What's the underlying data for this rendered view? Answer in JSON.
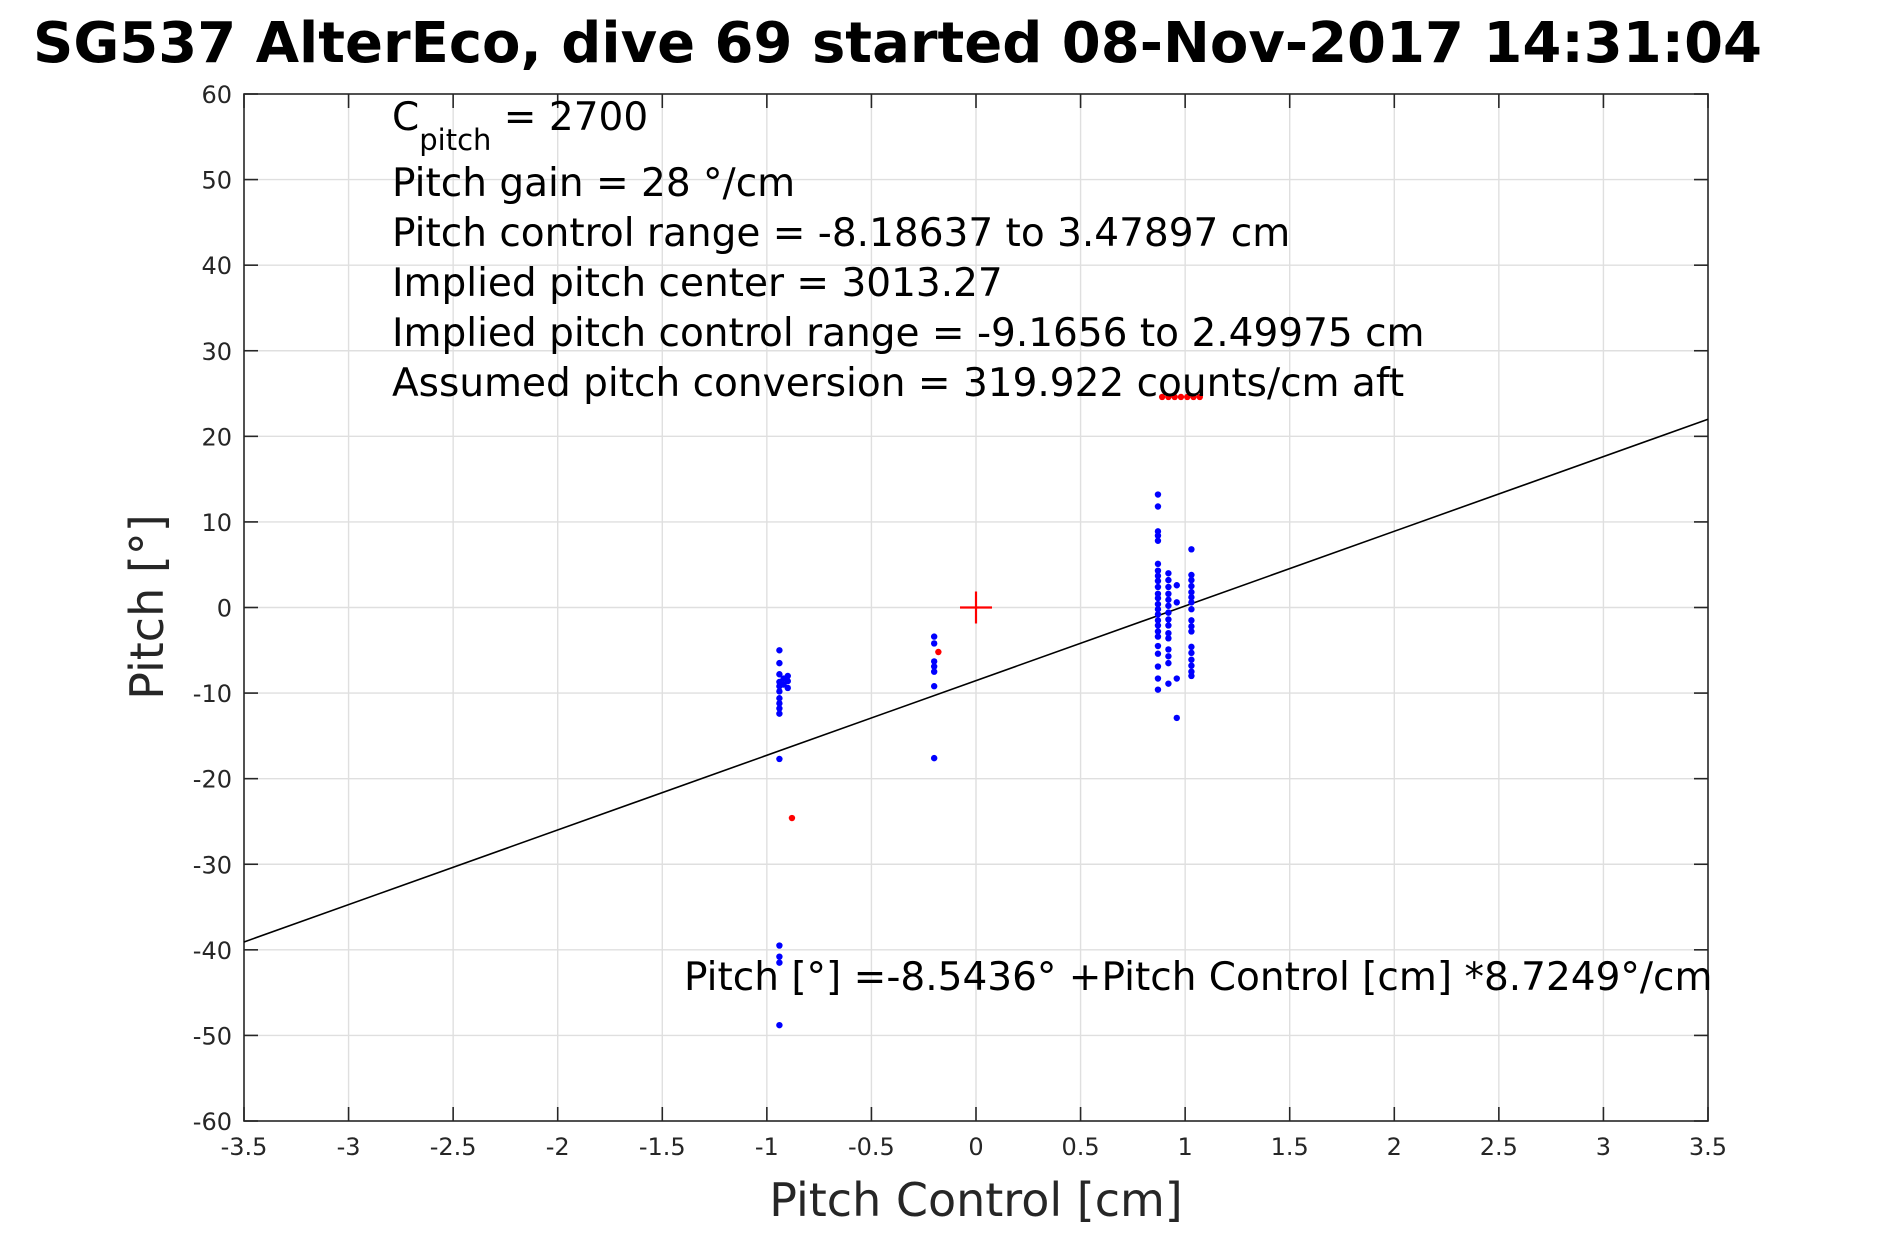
{
  "chart_data": {
    "type": "scatter",
    "title": "SG537 AlterEco, dive 69 started 08-Nov-2017 14:31:04",
    "xlabel": "Pitch Control [cm]",
    "ylabel": "Pitch [°]",
    "xlim": [
      -3.5,
      3.5
    ],
    "ylim": [
      -60,
      60
    ],
    "x_ticks": [
      -3.5,
      -3,
      -2.5,
      -2,
      -1.5,
      -1,
      -0.5,
      0,
      0.5,
      1,
      1.5,
      2,
      2.5,
      3,
      3.5
    ],
    "x_tick_labels": [
      "-3.5",
      "-3",
      "-2.5",
      "-2",
      "-1.5",
      "-1",
      "-0.5",
      "0",
      "0.5",
      "1",
      "1.5",
      "2",
      "2.5",
      "3",
      "3.5"
    ],
    "y_ticks": [
      -60,
      -50,
      -40,
      -30,
      -20,
      -10,
      0,
      10,
      20,
      30,
      40,
      50,
      60
    ],
    "y_tick_labels": [
      "-60",
      "-50",
      "-40",
      "-30",
      "-20",
      "-10",
      "0",
      "10",
      "20",
      "30",
      "40",
      "50",
      "60"
    ],
    "grid": true,
    "annotations": {
      "c_pitch_prefix": "C",
      "c_pitch_sub": "pitch",
      "c_pitch_value": " = 2700",
      "lines": [
        "Pitch gain = 28 °/cm",
        "Pitch control range = -8.18637 to 3.47897 cm",
        "Implied pitch center = 3013.27",
        "Implied pitch control range = -9.1656 to 2.49975 cm",
        "Assumed pitch conversion = 319.922 counts/cm aft"
      ],
      "fit_equation": "Pitch [°] =-8.5436° +Pitch Control [cm] *8.7249°/cm"
    },
    "fit_line": {
      "intercept": -8.5436,
      "slope": 8.7249,
      "color": "#000000"
    },
    "center_marker": {
      "x": 0,
      "y": 0,
      "color": "#ff0000"
    },
    "series": [
      {
        "color": "#0000ff",
        "points": [
          [
            -0.94,
            -5
          ],
          [
            -0.94,
            -6.5
          ],
          [
            -0.94,
            -7.8
          ],
          [
            -0.94,
            -8.7
          ],
          [
            -0.94,
            -9.2
          ],
          [
            -0.94,
            -9.8
          ],
          [
            -0.94,
            -10.6
          ],
          [
            -0.94,
            -11.2
          ],
          [
            -0.94,
            -11.8
          ],
          [
            -0.94,
            -12.4
          ],
          [
            -0.92,
            -8.3
          ],
          [
            -0.92,
            -9
          ],
          [
            -0.9,
            -8
          ],
          [
            -0.9,
            -8.6
          ],
          [
            -0.9,
            -9.4
          ],
          [
            -0.94,
            -17.7
          ],
          [
            -0.94,
            -39.5
          ],
          [
            -0.94,
            -40.8
          ],
          [
            -0.94,
            -41.5
          ],
          [
            -0.94,
            -48.8
          ],
          [
            -0.2,
            -3.4
          ],
          [
            -0.2,
            -4.2
          ],
          [
            -0.2,
            -6.3
          ],
          [
            -0.2,
            -6.9
          ],
          [
            -0.2,
            -7.5
          ],
          [
            -0.2,
            -9.2
          ],
          [
            -0.2,
            -17.6
          ],
          [
            0.87,
            13.2
          ],
          [
            0.87,
            11.8
          ],
          [
            0.87,
            8.9
          ],
          [
            0.87,
            8.4
          ],
          [
            0.87,
            7.8
          ],
          [
            0.87,
            5.1
          ],
          [
            0.87,
            4.3
          ],
          [
            0.87,
            3.7
          ],
          [
            0.87,
            3.1
          ],
          [
            0.87,
            2.4
          ],
          [
            0.87,
            1.6
          ],
          [
            0.87,
            1.1
          ],
          [
            0.87,
            0.4
          ],
          [
            0.87,
            -0.2
          ],
          [
            0.87,
            -0.8
          ],
          [
            0.87,
            -1.5
          ],
          [
            0.87,
            -2.1
          ],
          [
            0.87,
            -2.8
          ],
          [
            0.87,
            -3.4
          ],
          [
            0.87,
            -4.5
          ],
          [
            0.87,
            -5.4
          ],
          [
            0.87,
            -6.9
          ],
          [
            0.87,
            -8.3
          ],
          [
            0.87,
            -9.6
          ],
          [
            0.92,
            4
          ],
          [
            0.92,
            3.2
          ],
          [
            0.92,
            2.4
          ],
          [
            0.92,
            1.6
          ],
          [
            0.92,
            0.9
          ],
          [
            0.92,
            0.2
          ],
          [
            0.92,
            -0.6
          ],
          [
            0.92,
            -1.4
          ],
          [
            0.92,
            -2.1
          ],
          [
            0.92,
            -3
          ],
          [
            0.92,
            -3.6
          ],
          [
            0.92,
            -4.9
          ],
          [
            0.92,
            -5.7
          ],
          [
            0.92,
            -6.5
          ],
          [
            0.92,
            -8.9
          ],
          [
            0.96,
            2.6
          ],
          [
            0.96,
            0.6
          ],
          [
            0.96,
            -8.3
          ],
          [
            0.96,
            -12.9
          ],
          [
            1.03,
            6.8
          ],
          [
            1.03,
            3.8
          ],
          [
            1.03,
            3.2
          ],
          [
            1.03,
            2.5
          ],
          [
            1.03,
            1.8
          ],
          [
            1.03,
            1.2
          ],
          [
            1.03,
            0.6
          ],
          [
            1.03,
            -0.2
          ],
          [
            1.03,
            -1.5
          ],
          [
            1.03,
            -2.2
          ],
          [
            1.03,
            -2.8
          ],
          [
            1.03,
            -4.6
          ],
          [
            1.03,
            -5.3
          ],
          [
            1.03,
            -6.1
          ],
          [
            1.03,
            -6.8
          ],
          [
            1.03,
            -7.5
          ],
          [
            1.03,
            -8
          ]
        ]
      },
      {
        "color": "#ff0000",
        "points": [
          [
            -0.88,
            -24.6
          ],
          [
            -0.18,
            -5.2
          ],
          [
            0.89,
            24.6
          ],
          [
            0.92,
            24.6
          ],
          [
            0.95,
            24.6
          ],
          [
            0.98,
            24.6
          ],
          [
            1.01,
            24.6
          ],
          [
            1.04,
            24.6
          ],
          [
            1.07,
            24.6
          ]
        ]
      }
    ]
  }
}
